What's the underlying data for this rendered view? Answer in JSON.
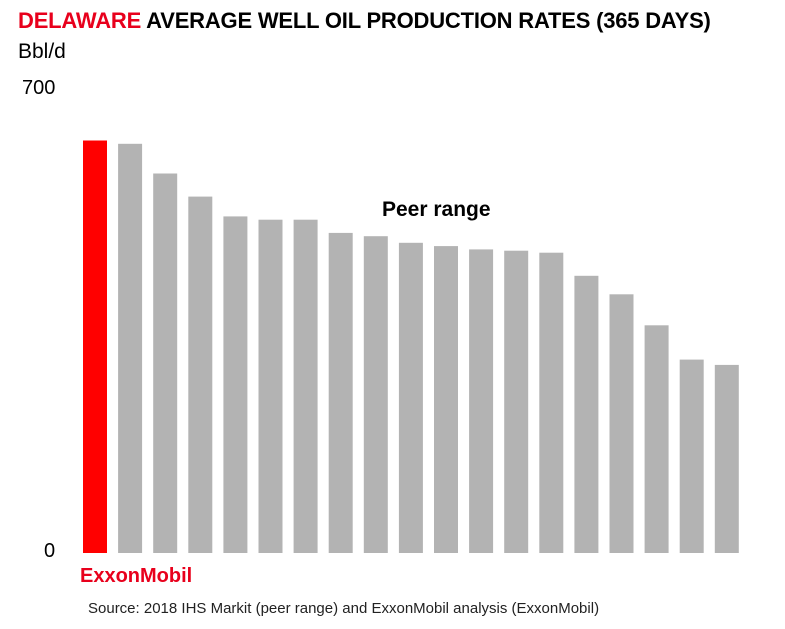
{
  "title": {
    "highlight": "DELAWARE",
    "rest": " AVERAGE WELL OIL PRODUCTION RATES (365 DAYS)"
  },
  "unit_label": "Bbl/d",
  "annotations": {
    "peer_range": "Peer range",
    "highlight_label": "ExxonMobil"
  },
  "source": "Source: 2018 IHS Markit (peer range) and ExxonMobil analysis (ExxonMobil)",
  "colors": {
    "highlight": "#ff0000",
    "peer": "#b3b3b3",
    "title_accent": "#e8001c"
  },
  "chart_data": {
    "type": "bar",
    "title": "DELAWARE AVERAGE WELL OIL PRODUCTION RATES (365 DAYS)",
    "ylabel": "Bbl/d",
    "xlabel": "",
    "ylim": [
      0,
      700
    ],
    "yticks": [
      "0",
      "700"
    ],
    "grid": false,
    "values": [
      625,
      620,
      575,
      540,
      510,
      505,
      505,
      485,
      480,
      470,
      465,
      460,
      458,
      455,
      420,
      392,
      345,
      293,
      285
    ],
    "highlight_index": 0
  }
}
